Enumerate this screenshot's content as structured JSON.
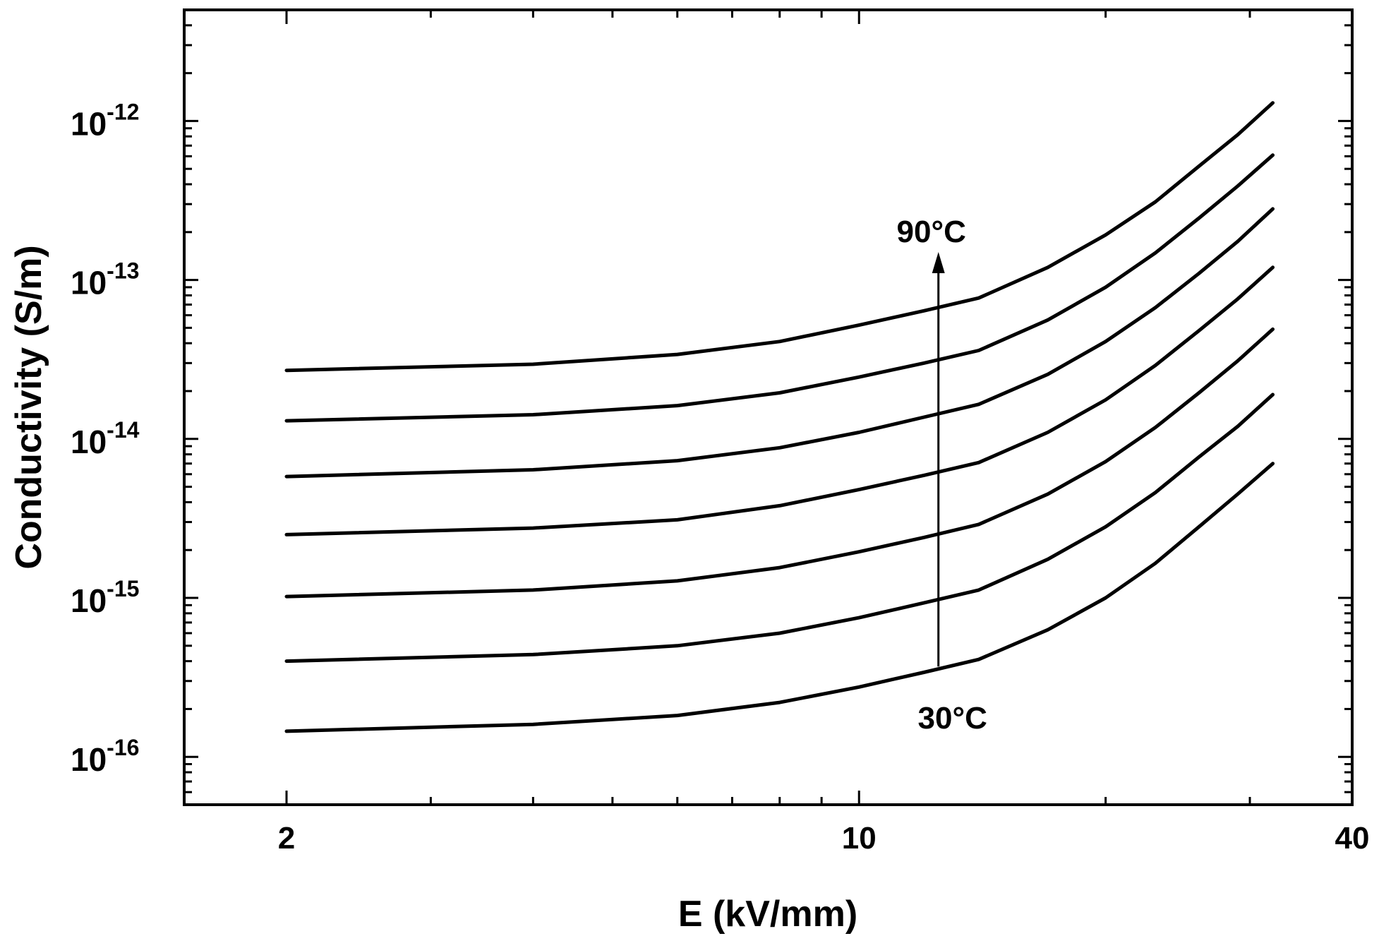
{
  "chart_data": {
    "type": "line",
    "xlabel": "E (kV/mm)",
    "ylabel": "Conductivity (S/m)",
    "x_scale": "log",
    "y_scale": "log",
    "xlim": [
      1.5,
      40
    ],
    "ylim": [
      5e-17,
      5e-12
    ],
    "x_ticks": [
      {
        "value": 2,
        "label": "2"
      },
      {
        "value": 10,
        "label": "10"
      },
      {
        "value": 40,
        "label": "40"
      }
    ],
    "y_ticks": [
      {
        "value": 1e-16,
        "base": "10",
        "exp": "-16"
      },
      {
        "value": 1e-15,
        "base": "10",
        "exp": "-15"
      },
      {
        "value": 1e-14,
        "base": "10",
        "exp": "-14"
      },
      {
        "value": 1e-13,
        "base": "10",
        "exp": "-13"
      },
      {
        "value": 1e-12,
        "base": "10",
        "exp": "-12"
      }
    ],
    "grid": false,
    "legend": "none",
    "x": [
      2,
      4,
      6,
      8,
      10,
      12,
      14,
      17,
      20,
      23,
      26,
      29,
      32
    ],
    "series": [
      {
        "values": [
          1.45e-16,
          1.6e-16,
          1.82e-16,
          2.2e-16,
          2.75e-16,
          3.4e-16,
          4.1e-16,
          6.3e-16,
          1e-15,
          1.65e-15,
          2.8e-15,
          4.5e-15,
          7e-15
        ]
      },
      {
        "values": [
          4e-16,
          4.4e-16,
          5e-16,
          6e-16,
          7.5e-16,
          9.3e-16,
          1.12e-15,
          1.75e-15,
          2.8e-15,
          4.6e-15,
          7.7e-15,
          1.2e-14,
          1.9e-14
        ]
      },
      {
        "values": [
          1.02e-15,
          1.12e-15,
          1.28e-15,
          1.55e-15,
          1.95e-15,
          2.4e-15,
          2.9e-15,
          4.5e-15,
          7.2e-15,
          1.18e-14,
          1.95e-14,
          3.1e-14,
          4.9e-14
        ]
      },
      {
        "values": [
          2.5e-15,
          2.75e-15,
          3.1e-15,
          3.8e-15,
          4.8e-15,
          5.9e-15,
          7.1e-15,
          1.1e-14,
          1.76e-14,
          2.9e-14,
          4.8e-14,
          7.6e-14,
          1.2e-13
        ]
      },
      {
        "values": [
          5.8e-15,
          6.4e-15,
          7.3e-15,
          8.8e-15,
          1.1e-14,
          1.37e-14,
          1.65e-14,
          2.55e-14,
          4.1e-14,
          6.7e-14,
          1.1e-13,
          1.75e-13,
          2.8e-13
        ]
      },
      {
        "values": [
          1.3e-14,
          1.42e-14,
          1.62e-14,
          1.95e-14,
          2.45e-14,
          3e-14,
          3.6e-14,
          5.6e-14,
          9e-14,
          1.48e-13,
          2.45e-13,
          3.9e-13,
          6.1e-13
        ]
      },
      {
        "values": [
          2.7e-14,
          2.95e-14,
          3.4e-14,
          4.1e-14,
          5.2e-14,
          6.4e-14,
          7.7e-14,
          1.2e-13,
          1.92e-13,
          3.1e-13,
          5.2e-13,
          8.2e-13,
          1.3e-12
        ]
      }
    ],
    "annotations": {
      "top": "90°C",
      "bottom": "30°C",
      "arrow_x": 12.5,
      "arrow_from_y": 3.7e-16,
      "arrow_to_y": 1.5e-13
    }
  }
}
